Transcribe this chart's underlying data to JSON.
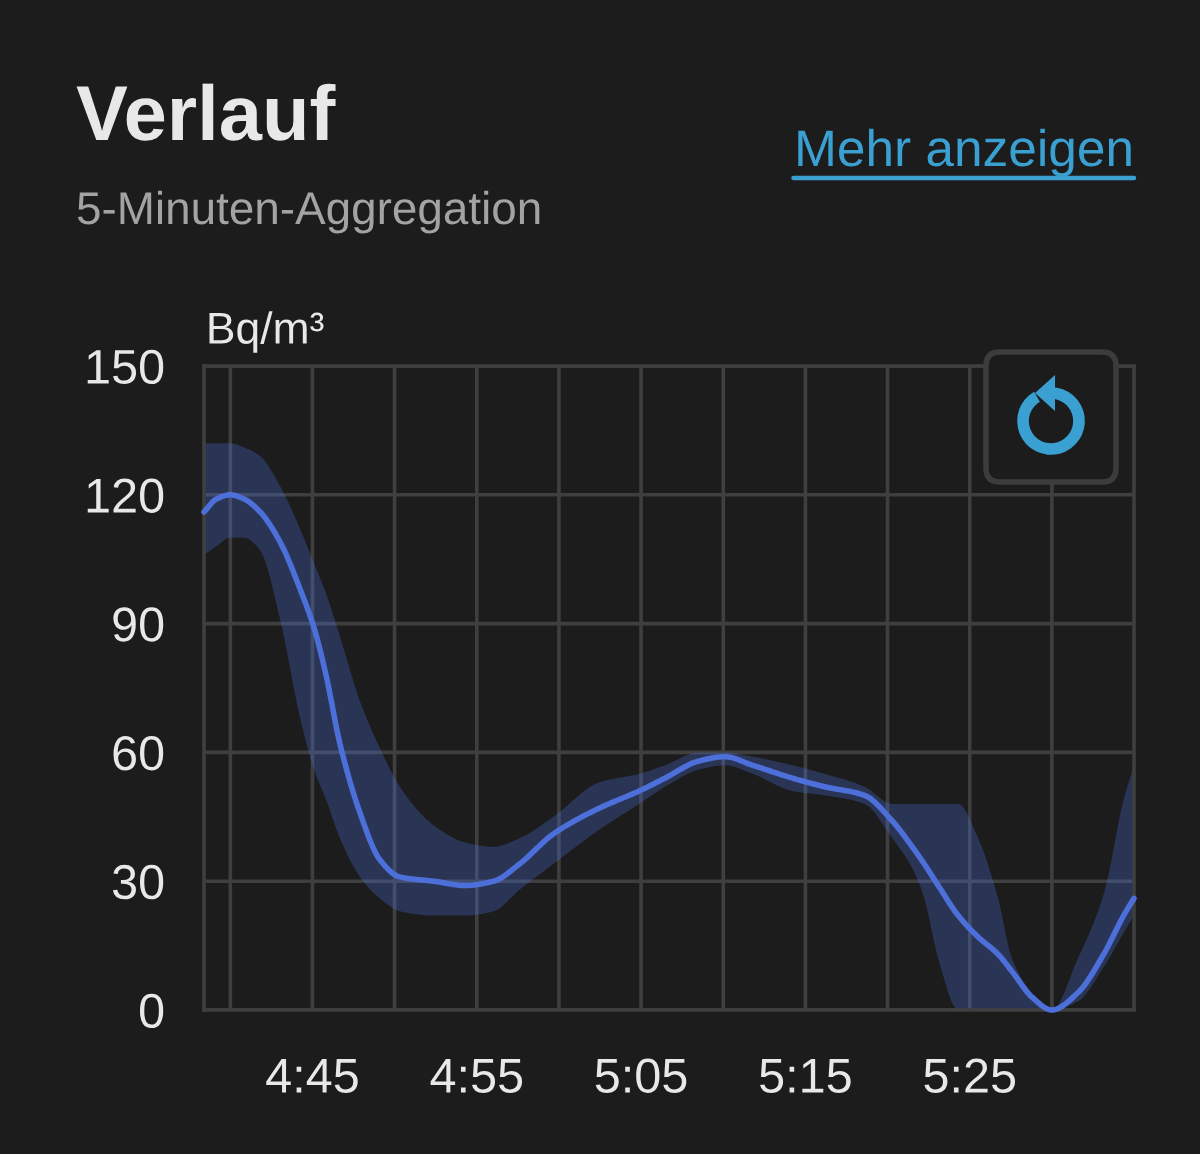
{
  "chart_data": {
    "type": "line",
    "title": "Verlauf",
    "subtitle": "5-Minuten-Aggregation",
    "ylabel": "Bq/m³",
    "annotations": [
      "Mehr anzeigen"
    ],
    "x": [
      4.64,
      4.6525,
      4.6667,
      4.6808,
      4.697,
      4.7172,
      4.7375,
      4.7516,
      4.7638,
      4.7779,
      4.7981,
      4.8184,
      4.8386,
      4.873,
      4.9053,
      4.9337,
      4.96,
      4.9943,
      5.0409,
      5.0813,
      5.1076,
      5.142,
      5.1683,
      5.1966,
      5.237,
      5.2694,
      5.3099,
      5.3382,
      5.3584,
      5.3706,
      5.3847,
      5.405,
      5.4252,
      5.4454,
      5.4595,
      5.4798,
      5.5,
      5.5263,
      5.5526,
      5.5728,
      5.5833
    ],
    "series": [
      {
        "color": "#4d6fd9",
        "values": [
          116,
          119,
          120,
          119,
          116,
          109,
          98,
          89,
          78,
          62,
          46,
          35,
          31,
          30,
          29,
          30,
          34,
          41,
          47,
          51,
          54,
          58,
          59,
          57,
          54,
          52,
          50,
          44,
          38,
          34,
          29,
          22,
          17,
          13,
          9,
          3,
          0,
          4,
          13,
          22,
          26
        ],
        "upper": [
          132,
          132,
          132,
          131,
          129,
          122,
          112,
          104,
          97,
          87,
          72,
          61,
          52,
          43,
          39,
          38,
          40,
          45,
          53,
          55,
          57,
          60,
          60,
          59,
          57,
          55,
          52,
          48,
          48,
          48,
          48,
          48,
          40,
          26,
          12,
          4,
          0,
          12,
          27,
          49,
          57
        ],
        "lower": [
          106,
          108,
          110,
          110,
          107,
          91,
          68,
          56,
          49,
          40,
          31,
          26,
          23,
          22,
          22,
          23,
          28,
          34,
          42,
          48,
          52,
          56,
          57,
          55,
          51,
          50,
          48,
          40,
          33,
          26,
          12,
          0,
          0,
          0,
          0,
          0,
          0,
          2,
          10,
          18,
          22
        ]
      }
    ],
    "xlim": [
      4.64,
      5.5833
    ],
    "ylim": [
      0,
      150
    ],
    "xticks": [
      {
        "value": 4.6667,
        "label": null
      },
      {
        "value": 4.75,
        "label": "4:45"
      },
      {
        "value": 4.8333,
        "label": null
      },
      {
        "value": 4.9167,
        "label": "4:55"
      },
      {
        "value": 5.0,
        "label": null
      },
      {
        "value": 5.0833,
        "label": "5:05"
      },
      {
        "value": 5.1667,
        "label": null
      },
      {
        "value": 5.25,
        "label": "5:15"
      },
      {
        "value": 5.3333,
        "label": null
      },
      {
        "value": 5.4167,
        "label": "5:25"
      },
      {
        "value": 5.5,
        "label": null
      }
    ],
    "yticks": [
      0,
      30,
      60,
      90,
      120,
      150
    ],
    "grid": true
  }
}
